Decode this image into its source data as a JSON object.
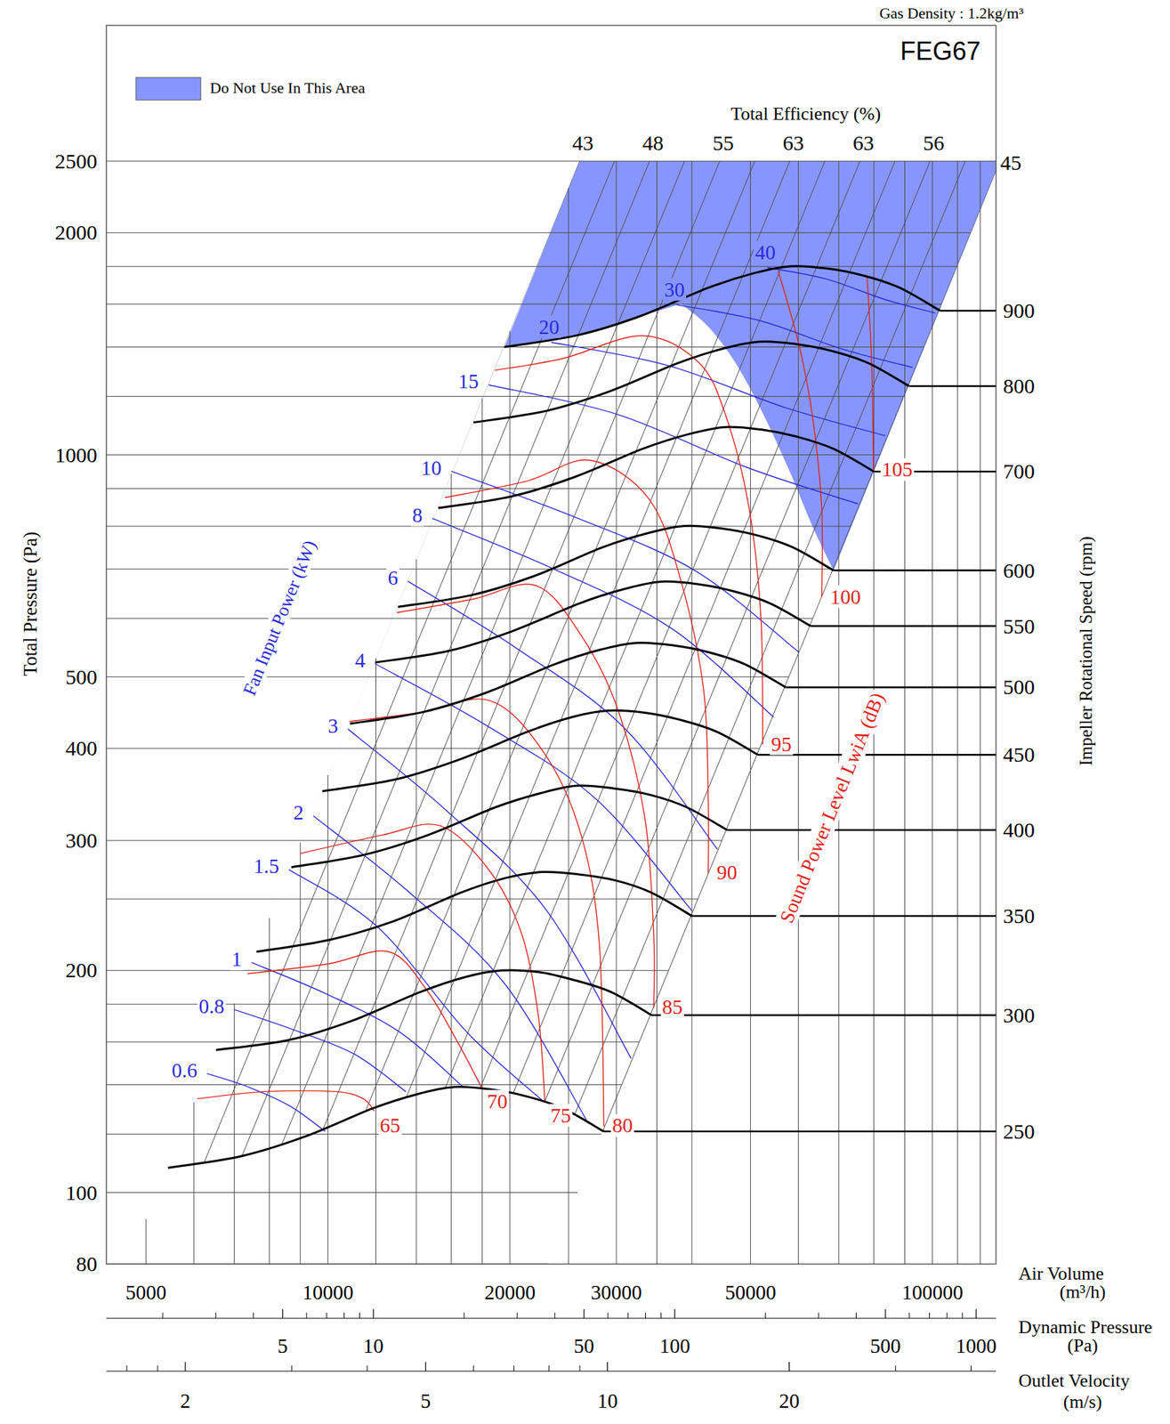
{
  "chart_data": {
    "type": "line",
    "title": "FEG67",
    "subtitle": "Gas Density : 1.2kg/m³",
    "log": true,
    "grid": true,
    "legend": "top-left",
    "x_label": "Air Volume (m³/h)",
    "y_label": "Total Pressure (Pa)",
    "y2_label": "Impeller Rotational Speed (rpm)",
    "xlim": [
      4300,
      127400
    ],
    "ylim": [
      80,
      3820
    ],
    "xticks": [
      5000,
      10000,
      20000,
      30000,
      50000,
      100000
    ],
    "yticks": [
      80,
      100,
      200,
      300,
      400,
      500,
      1000,
      2000,
      2500
    ],
    "xgrid": [
      6000,
      7000,
      8000,
      9000,
      12000,
      14000,
      16000,
      18000,
      25000,
      35000,
      40000,
      60000,
      70000,
      80000,
      90000,
      110000,
      120000
    ],
    "ygrid": [
      120,
      140,
      160,
      180,
      250,
      600,
      700,
      800,
      900,
      1200,
      1400,
      1600,
      1800
    ],
    "secondary_x_axes": [
      {
        "label": "Dynamic Pressure (Pa)",
        "xlim": [
          1.3,
          1164
        ],
        "xticks": [
          5,
          10,
          50,
          100,
          500,
          1000
        ],
        "minor_ticks": [
          2,
          3,
          4,
          6,
          7,
          8,
          9,
          20,
          30,
          40,
          60,
          70,
          80,
          90,
          200,
          300,
          400,
          600,
          700,
          800,
          900
        ]
      },
      {
        "label": "Outlet Velocity (m/s)",
        "xlim": [
          1.48,
          44
        ],
        "xticks": [
          2,
          5,
          10,
          20
        ],
        "minor_ticks": [
          1.6,
          1.8,
          3,
          4,
          6,
          7,
          8,
          9,
          30,
          40
        ]
      }
    ],
    "series": [
      {
        "name": "250",
        "color": "#000000",
        "x": [
          5440,
          7180,
          9140,
          11850,
          14080,
          16170,
          18570,
          21330,
          24490,
          28590
        ],
        "values": [
          108,
          112,
          119,
          130,
          136,
          139,
          138,
          135,
          130,
          121
        ]
      },
      {
        "name": "300",
        "color": "#000000",
        "x": [
          6530,
          8620,
          10970,
          14220,
          16900,
          19400,
          22280,
          25600,
          29390,
          34310
        ],
        "values": [
          156,
          161,
          171,
          187,
          196,
          200,
          199,
          194,
          187,
          174
        ]
      },
      {
        "name": "350",
        "color": "#000000",
        "x": [
          7620,
          10050,
          12800,
          16590,
          19710,
          22640,
          26000,
          29860,
          34290,
          40030
        ],
        "values": [
          212,
          220,
          233,
          255,
          267,
          272,
          270,
          265,
          255,
          237
        ]
      },
      {
        "name": "400",
        "color": "#000000",
        "x": [
          8700,
          11490,
          14620,
          18960,
          22530,
          25870,
          29710,
          34130,
          39180,
          45740
        ],
        "values": [
          276,
          287,
          305,
          333,
          348,
          356,
          353,
          346,
          333,
          310
        ]
      },
      {
        "name": "450",
        "color": "#000000",
        "x": [
          9790,
          12920,
          16450,
          21330,
          25340,
          29110,
          33430,
          38390,
          44080,
          51460
        ],
        "values": [
          350,
          363,
          386,
          421,
          441,
          450,
          447,
          437,
          421,
          392
        ]
      },
      {
        "name": "500",
        "color": "#000000",
        "x": [
          10880,
          14360,
          18280,
          23700,
          28160,
          32340,
          37140,
          42660,
          48980,
          57180
        ],
        "values": [
          432,
          448,
          476,
          520,
          544,
          556,
          552,
          540,
          520,
          484
        ]
      },
      {
        "name": "550",
        "color": "#000000",
        "x": [
          11970,
          15800,
          20110,
          26070,
          30980,
          35570,
          40850,
          46930,
          53880,
          62900
        ],
        "values": [
          523,
          542,
          576,
          629,
          658,
          673,
          668,
          653,
          629,
          586
        ]
      },
      {
        "name": "600",
        "color": "#000000",
        "x": [
          13060,
          17230,
          21940,
          28440,
          33790,
          38810,
          44570,
          51190,
          58780,
          68620
        ],
        "values": [
          622,
          645,
          685,
          749,
          783,
          801,
          795,
          778,
          749,
          697
        ]
      },
      {
        "name": "700",
        "color": "#000000",
        "x": [
          15230,
          20100,
          25590,
          33180,
          39420,
          45280,
          52000,
          59720,
          68570,
          80050
        ],
        "values": [
          847,
          878,
          933,
          1019,
          1066,
          1090,
          1082,
          1058,
          1019,
          949
        ]
      },
      {
        "name": "800",
        "color": "#000000",
        "x": [
          17410,
          22980,
          29250,
          37920,
          45060,
          51740,
          59420,
          68260,
          78370,
          91490
        ],
        "values": [
          1106,
          1147,
          1219,
          1331,
          1393,
          1423,
          1413,
          1382,
          1331,
          1239
        ]
      },
      {
        "name": "900",
        "color": "#000000",
        "x": [
          19580,
          25850,
          32900,
          42660,
          50690,
          58210,
          66850,
          76790,
          88160,
          102920
        ],
        "values": [
          1400,
          1452,
          1542,
          1685,
          1763,
          1801,
          1789,
          1750,
          1685,
          1568
        ]
      }
    ],
    "power_label": "Fan Input Power (kW)",
    "power_lines": [
      {
        "name": "0.6",
        "color": "#2b2bdd",
        "x": [
          6310,
          7390,
          8650,
          9900
        ],
        "values": [
          145,
          139,
          131,
          121
        ]
      },
      {
        "name": "0.8",
        "color": "#2b2bdd",
        "x": [
          7000,
          8810,
          11070,
          13460
        ],
        "values": [
          177,
          166,
          154,
          137
        ]
      },
      {
        "name": "1",
        "color": "#2b2bdd",
        "x": [
          7480,
          9920,
          13150,
          16740
        ],
        "values": [
          205,
          186,
          165,
          139
        ]
      },
      {
        "name": "1.5",
        "color": "#2b2bdd",
        "x": [
          8620,
          12090,
          16970,
          22700
        ],
        "values": [
          274,
          229,
          165,
          133
        ]
      },
      {
        "name": "2",
        "color": "#2b2bdd",
        "x": [
          9460,
          13650,
          19690,
          26980
        ],
        "values": [
          324,
          255,
          191,
          124
        ]
      },
      {
        "name": "3",
        "color": "#2b2bdd",
        "x": [
          10790,
          15730,
          22930,
          31740
        ],
        "values": [
          425,
          329,
          242,
          152
        ]
      },
      {
        "name": "4",
        "color": "#2b2bdd",
        "x": [
          11970,
          18250,
          27820,
          40000
        ],
        "values": [
          521,
          430,
          341,
          241
        ]
      },
      {
        "name": "6",
        "color": "#2b2bdd",
        "x": [
          13560,
          20490,
          30950,
          44070
        ],
        "values": [
          674,
          547,
          426,
          292
        ]
      },
      {
        "name": "8",
        "color": "#2b2bdd",
        "x": [
          14880,
          23460,
          36980,
          54600
        ],
        "values": [
          820,
          702,
          582,
          441
        ]
      },
      {
        "name": "10",
        "color": "#2b2bdd",
        "x": [
          16000,
          25440,
          40440,
          60150
        ],
        "values": [
          950,
          825,
          697,
          540
        ]
      },
      {
        "name": "15",
        "color": "#2b2bdd",
        "x": [
          18440,
          30170,
          49380,
          75330
        ],
        "values": [
          1244,
          1134,
          961,
          858
        ]
      },
      {
        "name": "20",
        "color": "#2b2bdd",
        "x": [
          23410,
          36550,
          57050,
          83540
        ],
        "values": [
          1421,
          1321,
          1159,
          1061
        ]
      },
      {
        "name": "30",
        "color": "#2b2bdd",
        "x": [
          37730,
          51670,
          70760,
          92680
        ],
        "values": [
          1597,
          1521,
          1392,
          1313
        ]
      },
      {
        "name": "40",
        "color": "#2b2bdd",
        "x": [
          53320,
          66680,
          83410,
          101040
        ],
        "values": [
          1794,
          1731,
          1624,
          1556
        ]
      }
    ],
    "sound_label": "Sound Power Level LwiA (dB)",
    "sound_lines": [
      {
        "name": "65",
        "color": "#e3211c",
        "x": [
          6080,
          7820,
          10320,
          11440,
          11930
        ],
        "values": [
          134,
          137,
          137,
          134,
          129
        ]
      },
      {
        "name": "70",
        "color": "#e3211c",
        "x": [
          7360,
          9970,
          12610,
          14580,
          16450,
          17940
        ],
        "values": [
          198,
          204,
          212,
          188,
          159,
          139
        ]
      },
      {
        "name": "75",
        "color": "#e3211c",
        "x": [
          8990,
          12260,
          15360,
          18570,
          20960,
          22300,
          22850
        ],
        "values": [
          288,
          305,
          314,
          272,
          223,
          173,
          133
        ]
      },
      {
        "name": "80",
        "color": "#e3211c",
        "x": [
          10860,
          14080,
          18570,
          22850,
          26240,
          28120,
          28610
        ],
        "values": [
          435,
          447,
          464,
          393,
          305,
          217,
          123
        ]
      },
      {
        "name": "85",
        "color": "#e3211c",
        "x": [
          13000,
          17330,
          22070,
          26240,
          30130,
          33420,
          34590,
          34590
        ],
        "values": [
          611,
          637,
          665,
          569,
          453,
          323,
          223,
          178
        ]
      },
      {
        "name": "90",
        "color": "#e3211c",
        "x": [
          15620,
          21320,
          27160,
          34010,
          38380,
          41830,
          42560,
          42560
        ],
        "values": [
          875,
          921,
          983,
          870,
          674,
          480,
          342,
          271
        ]
      },
      {
        "name": "95",
        "color": "#e3211c",
        "x": [
          18890,
          24490,
          33190,
          41120,
          45630,
          49740,
          52030,
          52390
        ],
        "values": [
          1302,
          1351,
          1450,
          1332,
          1123,
          846,
          602,
          405
        ]
      },
      {
        "name": "100",
        "color": "#e3211c",
        "x": [
          55550,
          60160,
          63360,
          65590,
          65590
        ],
        "values": [
          1778,
          1409,
          1123,
          846,
          641
        ]
      },
      {
        "name": "105",
        "color": "#e3211c",
        "x": [
          77980,
          79340,
          79890
        ],
        "values": [
          1744,
          1332,
          953
        ]
      }
    ],
    "efficiency_label": "Total Efficiency (%)",
    "system_lines": {
      "top": 2500,
      "x": [
        26060,
        29780,
        34040,
        38900,
        44470,
        50820,
        58080,
        66380,
        75870,
        86710,
        99100,
        113300,
        129400
      ],
      "labels": [
        43,
        null,
        48,
        null,
        55,
        null,
        63,
        null,
        63,
        null,
        56,
        null,
        45
      ]
    },
    "restricted_area": {
      "label": "Do Not Use In This Area",
      "color": "#8796ff",
      "x": [
        38380,
        42560,
        47230,
        52390,
        58100,
        63360,
        68620
      ],
      "values": [
        1602,
        1492,
        1332,
        1139,
        948,
        799,
        697
      ]
    }
  }
}
